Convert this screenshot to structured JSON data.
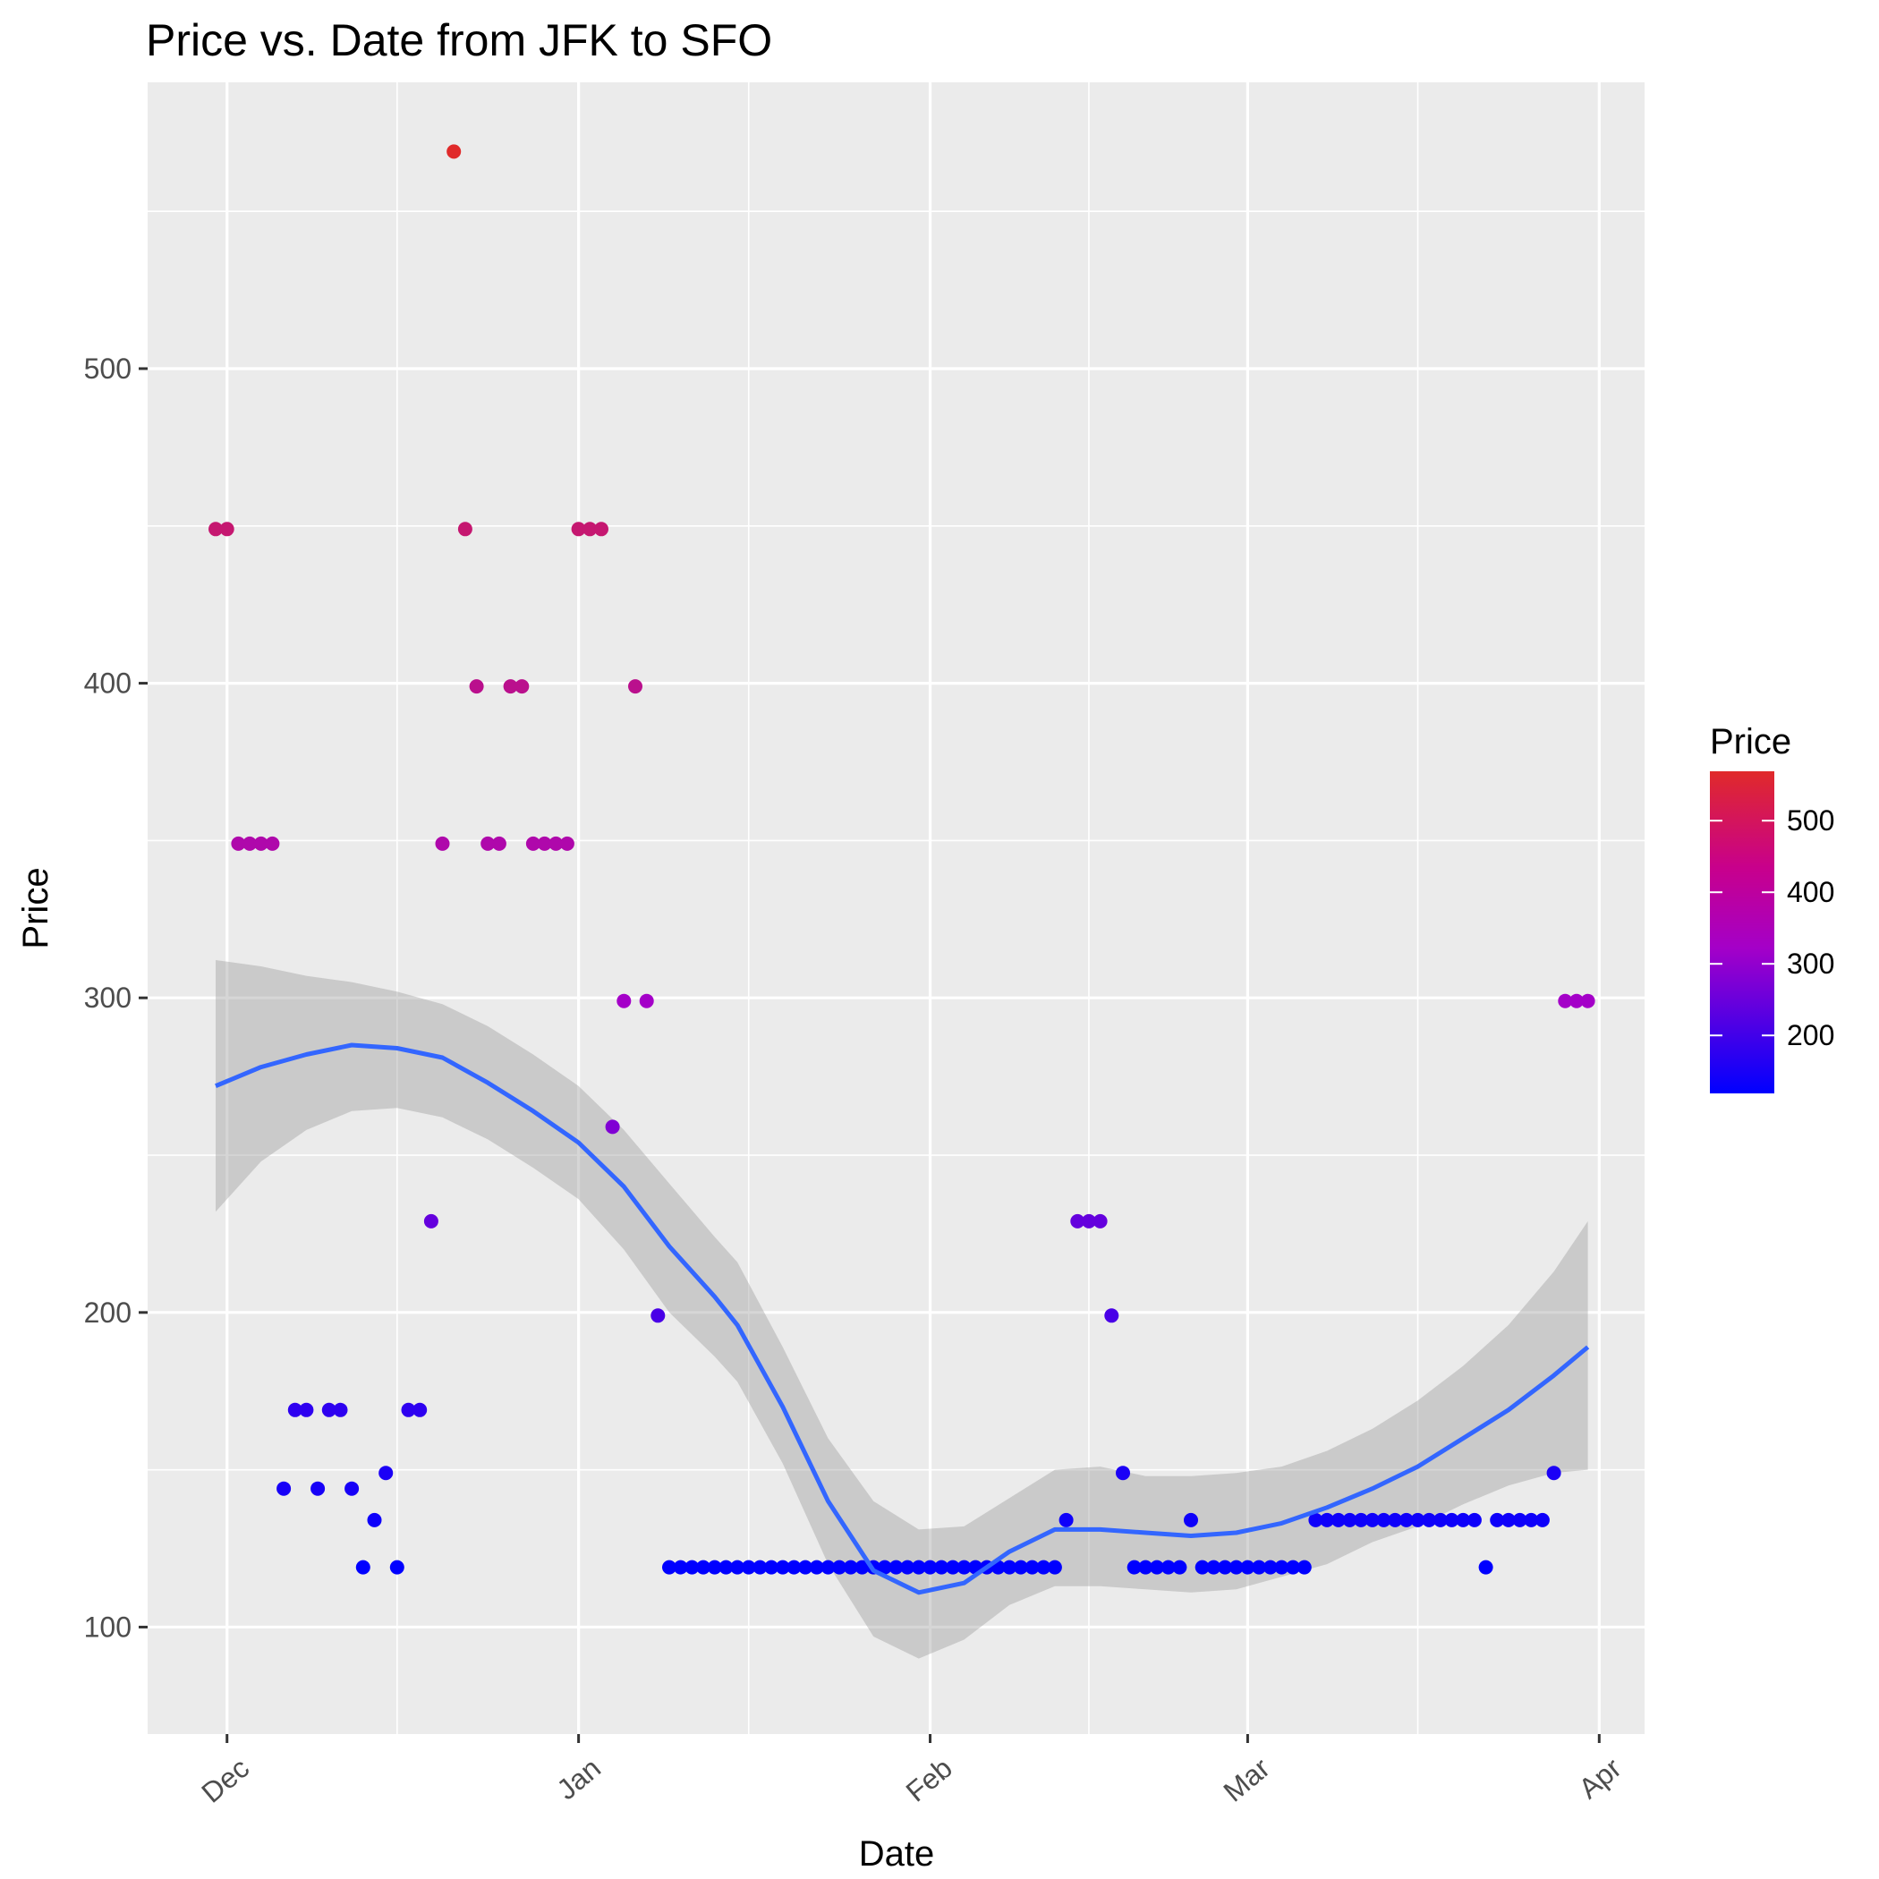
{
  "chart_data": {
    "type": "scatter",
    "title": "Price vs. Date from JFK to SFO",
    "xlabel": "Date",
    "ylabel": "Price",
    "x_ticks": [
      {
        "label": "Dec",
        "date": "2017-12-01"
      },
      {
        "label": "Jan",
        "date": "2018-01-01"
      },
      {
        "label": "Feb",
        "date": "2018-02-01"
      },
      {
        "label": "Mar",
        "date": "2018-03-01"
      },
      {
        "label": "Apr",
        "date": "2018-04-01"
      }
    ],
    "xlim": [
      "2017-11-24",
      "2018-04-05"
    ],
    "y_ticks": [
      100,
      200,
      300,
      400,
      500
    ],
    "ylim": [
      66,
      591
    ],
    "grid": true,
    "legend": {
      "title": "Price",
      "placement": "right",
      "ticks": [
        200,
        300,
        400,
        500
      ],
      "range": [
        119,
        569
      ],
      "colors": [
        "#0000ff",
        "#e02a2a"
      ]
    },
    "points": [
      {
        "x": "2017-11-30",
        "y": 449
      },
      {
        "x": "2017-12-01",
        "y": 449
      },
      {
        "x": "2017-12-02",
        "y": 349
      },
      {
        "x": "2017-12-03",
        "y": 349
      },
      {
        "x": "2017-12-04",
        "y": 349
      },
      {
        "x": "2017-12-05",
        "y": 349
      },
      {
        "x": "2017-12-06",
        "y": 144
      },
      {
        "x": "2017-12-07",
        "y": 169
      },
      {
        "x": "2017-12-08",
        "y": 169
      },
      {
        "x": "2017-12-09",
        "y": 144
      },
      {
        "x": "2017-12-10",
        "y": 169
      },
      {
        "x": "2017-12-11",
        "y": 169
      },
      {
        "x": "2017-12-12",
        "y": 144
      },
      {
        "x": "2017-12-13",
        "y": 119
      },
      {
        "x": "2017-12-14",
        "y": 134
      },
      {
        "x": "2017-12-15",
        "y": 149
      },
      {
        "x": "2017-12-16",
        "y": 119
      },
      {
        "x": "2017-12-17",
        "y": 169
      },
      {
        "x": "2017-12-18",
        "y": 169
      },
      {
        "x": "2017-12-19",
        "y": 229
      },
      {
        "x": "2017-12-20",
        "y": 349
      },
      {
        "x": "2017-12-21",
        "y": 569
      },
      {
        "x": "2017-12-22",
        "y": 449
      },
      {
        "x": "2017-12-23",
        "y": 399
      },
      {
        "x": "2017-12-24",
        "y": 349
      },
      {
        "x": "2017-12-25",
        "y": 349
      },
      {
        "x": "2017-12-26",
        "y": 399
      },
      {
        "x": "2017-12-27",
        "y": 399
      },
      {
        "x": "2017-12-28",
        "y": 349
      },
      {
        "x": "2017-12-29",
        "y": 349
      },
      {
        "x": "2017-12-30",
        "y": 349
      },
      {
        "x": "2017-12-31",
        "y": 349
      },
      {
        "x": "2018-01-01",
        "y": 449
      },
      {
        "x": "2018-01-02",
        "y": 449
      },
      {
        "x": "2018-01-03",
        "y": 449
      },
      {
        "x": "2018-01-04",
        "y": 259
      },
      {
        "x": "2018-01-05",
        "y": 299
      },
      {
        "x": "2018-01-06",
        "y": 399
      },
      {
        "x": "2018-01-07",
        "y": 299
      },
      {
        "x": "2018-01-08",
        "y": 199
      },
      {
        "x": "2018-01-09",
        "y": 119
      },
      {
        "x": "2018-01-10",
        "y": 119
      },
      {
        "x": "2018-01-11",
        "y": 119
      },
      {
        "x": "2018-01-12",
        "y": 119
      },
      {
        "x": "2018-01-13",
        "y": 119
      },
      {
        "x": "2018-01-14",
        "y": 119
      },
      {
        "x": "2018-01-15",
        "y": 119
      },
      {
        "x": "2018-01-16",
        "y": 119
      },
      {
        "x": "2018-01-17",
        "y": 119
      },
      {
        "x": "2018-01-18",
        "y": 119
      },
      {
        "x": "2018-01-19",
        "y": 119
      },
      {
        "x": "2018-01-20",
        "y": 119
      },
      {
        "x": "2018-01-21",
        "y": 119
      },
      {
        "x": "2018-01-22",
        "y": 119
      },
      {
        "x": "2018-01-23",
        "y": 119
      },
      {
        "x": "2018-01-24",
        "y": 119
      },
      {
        "x": "2018-01-25",
        "y": 119
      },
      {
        "x": "2018-01-26",
        "y": 119
      },
      {
        "x": "2018-01-27",
        "y": 119
      },
      {
        "x": "2018-01-28",
        "y": 119
      },
      {
        "x": "2018-01-29",
        "y": 119
      },
      {
        "x": "2018-01-30",
        "y": 119
      },
      {
        "x": "2018-01-31",
        "y": 119
      },
      {
        "x": "2018-02-01",
        "y": 119
      },
      {
        "x": "2018-02-02",
        "y": 119
      },
      {
        "x": "2018-02-03",
        "y": 119
      },
      {
        "x": "2018-02-04",
        "y": 119
      },
      {
        "x": "2018-02-05",
        "y": 119
      },
      {
        "x": "2018-02-06",
        "y": 119
      },
      {
        "x": "2018-02-07",
        "y": 119
      },
      {
        "x": "2018-02-08",
        "y": 119
      },
      {
        "x": "2018-02-09",
        "y": 119
      },
      {
        "x": "2018-02-10",
        "y": 119
      },
      {
        "x": "2018-02-11",
        "y": 119
      },
      {
        "x": "2018-02-12",
        "y": 119
      },
      {
        "x": "2018-02-13",
        "y": 134
      },
      {
        "x": "2018-02-14",
        "y": 229
      },
      {
        "x": "2018-02-15",
        "y": 229
      },
      {
        "x": "2018-02-16",
        "y": 229
      },
      {
        "x": "2018-02-17",
        "y": 199
      },
      {
        "x": "2018-02-18",
        "y": 149
      },
      {
        "x": "2018-02-19",
        "y": 119
      },
      {
        "x": "2018-02-20",
        "y": 119
      },
      {
        "x": "2018-02-21",
        "y": 119
      },
      {
        "x": "2018-02-22",
        "y": 119
      },
      {
        "x": "2018-02-23",
        "y": 119
      },
      {
        "x": "2018-02-24",
        "y": 134
      },
      {
        "x": "2018-02-25",
        "y": 119
      },
      {
        "x": "2018-02-26",
        "y": 119
      },
      {
        "x": "2018-02-27",
        "y": 119
      },
      {
        "x": "2018-02-28",
        "y": 119
      },
      {
        "x": "2018-03-01",
        "y": 119
      },
      {
        "x": "2018-03-02",
        "y": 119
      },
      {
        "x": "2018-03-03",
        "y": 119
      },
      {
        "x": "2018-03-04",
        "y": 119
      },
      {
        "x": "2018-03-05",
        "y": 119
      },
      {
        "x": "2018-03-06",
        "y": 119
      },
      {
        "x": "2018-03-07",
        "y": 134
      },
      {
        "x": "2018-03-08",
        "y": 134
      },
      {
        "x": "2018-03-09",
        "y": 134
      },
      {
        "x": "2018-03-10",
        "y": 134
      },
      {
        "x": "2018-03-11",
        "y": 134
      },
      {
        "x": "2018-03-12",
        "y": 134
      },
      {
        "x": "2018-03-13",
        "y": 134
      },
      {
        "x": "2018-03-14",
        "y": 134
      },
      {
        "x": "2018-03-15",
        "y": 134
      },
      {
        "x": "2018-03-16",
        "y": 134
      },
      {
        "x": "2018-03-17",
        "y": 134
      },
      {
        "x": "2018-03-18",
        "y": 134
      },
      {
        "x": "2018-03-19",
        "y": 134
      },
      {
        "x": "2018-03-20",
        "y": 134
      },
      {
        "x": "2018-03-21",
        "y": 134
      },
      {
        "x": "2018-03-22",
        "y": 119
      },
      {
        "x": "2018-03-23",
        "y": 134
      },
      {
        "x": "2018-03-24",
        "y": 134
      },
      {
        "x": "2018-03-25",
        "y": 134
      },
      {
        "x": "2018-03-26",
        "y": 134
      },
      {
        "x": "2018-03-27",
        "y": 134
      },
      {
        "x": "2018-03-28",
        "y": 149
      },
      {
        "x": "2018-03-29",
        "y": 299
      },
      {
        "x": "2018-03-30",
        "y": 299
      },
      {
        "x": "2018-03-31",
        "y": 299
      }
    ],
    "smooth": [
      {
        "x": "2017-11-30",
        "y": 272,
        "lo": 232,
        "hi": 312
      },
      {
        "x": "2017-12-04",
        "y": 278,
        "lo": 248,
        "hi": 310
      },
      {
        "x": "2017-12-08",
        "y": 282,
        "lo": 258,
        "hi": 307
      },
      {
        "x": "2017-12-12",
        "y": 285,
        "lo": 264,
        "hi": 305
      },
      {
        "x": "2017-12-16",
        "y": 284,
        "lo": 265,
        "hi": 302
      },
      {
        "x": "2017-12-20",
        "y": 281,
        "lo": 262,
        "hi": 298
      },
      {
        "x": "2017-12-24",
        "y": 273,
        "lo": 255,
        "hi": 291
      },
      {
        "x": "2017-12-28",
        "y": 264,
        "lo": 246,
        "hi": 282
      },
      {
        "x": "2018-01-01",
        "y": 254,
        "lo": 236,
        "hi": 272
      },
      {
        "x": "2018-01-05",
        "y": 240,
        "lo": 220,
        "hi": 258
      },
      {
        "x": "2018-01-09",
        "y": 221,
        "lo": 200,
        "hi": 241
      },
      {
        "x": "2018-01-13",
        "y": 205,
        "lo": 186,
        "hi": 224
      },
      {
        "x": "2018-01-15",
        "y": 196,
        "lo": 178,
        "hi": 216
      },
      {
        "x": "2018-01-19",
        "y": 170,
        "lo": 152,
        "hi": 189
      },
      {
        "x": "2018-01-23",
        "y": 140,
        "lo": 120,
        "hi": 160
      },
      {
        "x": "2018-01-27",
        "y": 118,
        "lo": 97,
        "hi": 140
      },
      {
        "x": "2018-01-31",
        "y": 111,
        "lo": 90,
        "hi": 131
      },
      {
        "x": "2018-02-04",
        "y": 114,
        "lo": 96,
        "hi": 132
      },
      {
        "x": "2018-02-08",
        "y": 124,
        "lo": 107,
        "hi": 141
      },
      {
        "x": "2018-02-12",
        "y": 131,
        "lo": 113,
        "hi": 150
      },
      {
        "x": "2018-02-16",
        "y": 131,
        "lo": 113,
        "hi": 151
      },
      {
        "x": "2018-02-20",
        "y": 130,
        "lo": 112,
        "hi": 148
      },
      {
        "x": "2018-02-24",
        "y": 129,
        "lo": 111,
        "hi": 148
      },
      {
        "x": "2018-02-28",
        "y": 130,
        "lo": 112,
        "hi": 149
      },
      {
        "x": "2018-03-04",
        "y": 133,
        "lo": 116,
        "hi": 151
      },
      {
        "x": "2018-03-08",
        "y": 138,
        "lo": 120,
        "hi": 156
      },
      {
        "x": "2018-03-12",
        "y": 144,
        "lo": 127,
        "hi": 163
      },
      {
        "x": "2018-03-16",
        "y": 151,
        "lo": 132,
        "hi": 172
      },
      {
        "x": "2018-03-20",
        "y": 160,
        "lo": 139,
        "hi": 183
      },
      {
        "x": "2018-03-24",
        "y": 169,
        "lo": 145,
        "hi": 196
      },
      {
        "x": "2018-03-28",
        "y": 180,
        "lo": 149,
        "hi": 213
      },
      {
        "x": "2018-03-31",
        "y": 189,
        "lo": 150,
        "hi": 229
      }
    ],
    "colors": {
      "panel": "#ebebeb",
      "grid_major": "#ffffff",
      "smooth_line": "#3366ff",
      "ribbon": "#999999",
      "low": "#0000ff",
      "mid": "#a400c8",
      "high": "#e02a2a"
    }
  }
}
